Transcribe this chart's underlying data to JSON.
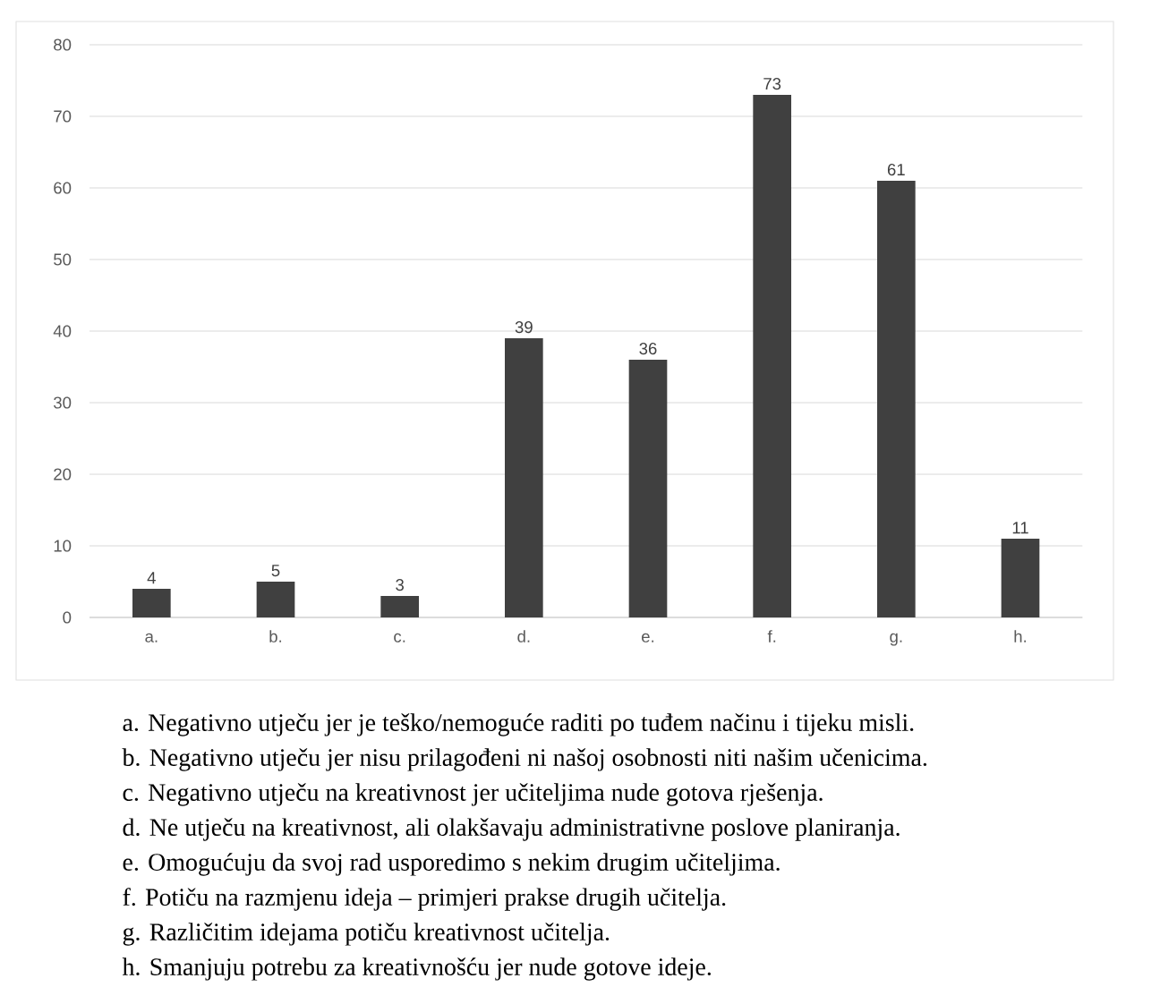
{
  "chart_data": {
    "type": "bar",
    "categories": [
      "a.",
      "b.",
      "c.",
      "d.",
      "e.",
      "f.",
      "g.",
      "h."
    ],
    "values": [
      4,
      5,
      3,
      39,
      36,
      73,
      61,
      11
    ],
    "color": "#404040",
    "data_labels": true,
    "grid": "y",
    "ylim": [
      0,
      80
    ],
    "yticks": [
      0,
      10,
      20,
      30,
      40,
      50,
      60,
      70,
      80
    ],
    "annotations": [
      "a.  Negativno utječu jer je teško/nemoguće raditi po tuđem načinu i tijeku misli.",
      "b.  Negativno utječu jer nisu prilagođeni ni našoj osobnosti niti našim učenicima.",
      "c.  Negativno utječu na kreativnost jer učiteljima nude gotova rješenja.",
      "d.  Ne utječu na kreativnost, ali olakšavaju administrativne poslove planiranja.",
      "e.  Omogućuju da svoj rad usporedimo s nekim drugim učiteljima.",
      "f.  Potiču na razmjenu ideja – primjeri prakse drugih učitelja.",
      "g.  Različitim idejama potiču kreativnost učitelja.",
      "h.  Smanjuju potrebu za kreativnošću jer nude gotove ideje."
    ]
  }
}
